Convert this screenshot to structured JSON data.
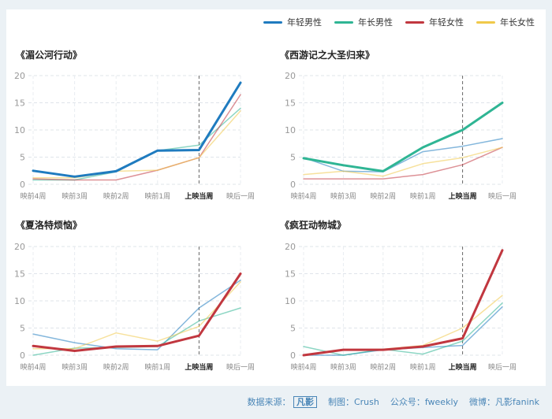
{
  "legend": [
    {
      "name": "年轻男性",
      "color": "#1f7bbf"
    },
    {
      "name": "年长男性",
      "color": "#2fb594"
    },
    {
      "name": "年轻女性",
      "color": "#c1373f"
    },
    {
      "name": "年长女性",
      "color": "#f0c94a"
    }
  ],
  "footer": {
    "source_label": "数据来源：",
    "source_logo": "凡影",
    "maker": "制图：Crush",
    "account": "公众号：fweekly",
    "weibo": "微博：凡影fanink"
  },
  "chart_data": [
    {
      "type": "line",
      "title": "《湄公河行动》",
      "categories": [
        "映前4周",
        "映前3周",
        "映前2周",
        "映前1周",
        "上映当周",
        "映后一周"
      ],
      "ylim": [
        0,
        20
      ],
      "yticks": [
        0,
        5,
        10,
        15,
        20
      ],
      "highlight": "年轻男性",
      "series": [
        {
          "name": "年轻男性",
          "color": "#1f7bbf",
          "values": [
            2.5,
            1.4,
            2.4,
            6.2,
            6.3,
            18.7
          ]
        },
        {
          "name": "年长男性",
          "color": "#2fb594",
          "values": [
            0.8,
            0.8,
            2.3,
            6.2,
            7.2,
            14.0
          ]
        },
        {
          "name": "年轻女性",
          "color": "#c1373f",
          "values": [
            1.0,
            0.8,
            0.8,
            2.6,
            4.9,
            16.5
          ]
        },
        {
          "name": "年长女性",
          "color": "#f0c94a",
          "values": [
            1.2,
            1.2,
            2.4,
            2.6,
            4.9,
            13.5
          ]
        }
      ]
    },
    {
      "type": "line",
      "title": "《西游记之大圣归来》",
      "categories": [
        "映前4周",
        "映前3周",
        "映前2周",
        "映前1周",
        "上映当周",
        "映后一周"
      ],
      "ylim": [
        0,
        20
      ],
      "yticks": [
        0,
        5,
        10,
        15,
        20
      ],
      "highlight": "年长男性",
      "series": [
        {
          "name": "年轻男性",
          "color": "#1f7bbf",
          "values": [
            4.9,
            2.4,
            2.3,
            6.0,
            7.0,
            8.4
          ]
        },
        {
          "name": "年长男性",
          "color": "#2fb594",
          "values": [
            4.8,
            3.5,
            2.4,
            6.8,
            10.0,
            15.0
          ]
        },
        {
          "name": "年轻女性",
          "color": "#c1373f",
          "values": [
            1.0,
            1.0,
            1.0,
            1.8,
            3.6,
            6.8
          ]
        },
        {
          "name": "年长女性",
          "color": "#f0c94a",
          "values": [
            1.8,
            2.4,
            1.5,
            3.8,
            4.9,
            6.8
          ]
        }
      ]
    },
    {
      "type": "line",
      "title": "《夏洛特烦恼》",
      "categories": [
        "映前4周",
        "映前3周",
        "映前2周",
        "映前1周",
        "上映当周",
        "映后一周"
      ],
      "ylim": [
        0,
        20
      ],
      "yticks": [
        0,
        5,
        10,
        15,
        20
      ],
      "highlight": "年轻女性",
      "series": [
        {
          "name": "年轻男性",
          "color": "#1f7bbf",
          "values": [
            3.9,
            2.3,
            1.2,
            1.0,
            8.7,
            13.8
          ]
        },
        {
          "name": "年长男性",
          "color": "#2fb594",
          "values": [
            0.0,
            1.3,
            1.4,
            1.6,
            6.3,
            8.7
          ]
        },
        {
          "name": "年轻女性",
          "color": "#c1373f",
          "values": [
            1.7,
            0.8,
            1.6,
            1.7,
            3.6,
            15.0
          ]
        },
        {
          "name": "年长女性",
          "color": "#f0c94a",
          "values": [
            1.2,
            1.2,
            4.1,
            2.6,
            5.3,
            13.5
          ]
        }
      ]
    },
    {
      "type": "line",
      "title": "《疯狂动物城》",
      "categories": [
        "映前4周",
        "映前3周",
        "映前2周",
        "映前1周",
        "上映当周",
        "映后一周"
      ],
      "ylim": [
        0,
        20
      ],
      "yticks": [
        0,
        5,
        10,
        15,
        20
      ],
      "highlight": "年轻女性",
      "series": [
        {
          "name": "年轻男性",
          "color": "#1f7bbf",
          "values": [
            0.0,
            0.0,
            1.0,
            1.4,
            1.8,
            8.9
          ]
        },
        {
          "name": "年长男性",
          "color": "#2fb594",
          "values": [
            1.6,
            0.0,
            1.1,
            0.2,
            2.6,
            9.6
          ]
        },
        {
          "name": "年轻女性",
          "color": "#c1373f",
          "values": [
            0.0,
            1.0,
            1.0,
            1.6,
            3.1,
            19.3
          ]
        },
        {
          "name": "年长女性",
          "color": "#f0c94a",
          "values": [
            0.0,
            1.0,
            1.1,
            1.8,
            5.0,
            11.0
          ]
        }
      ]
    }
  ]
}
